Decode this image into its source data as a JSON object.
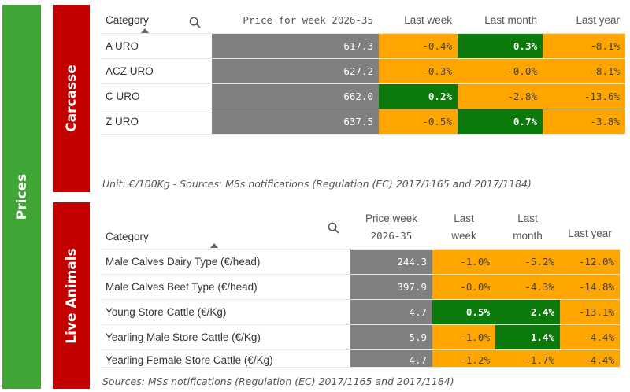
{
  "side": {
    "prices": "Prices",
    "carcasse": "Carcasse",
    "live": "Live Animals"
  },
  "carcasse": {
    "headers": {
      "category": "Category",
      "price": "Price for week 2026-35",
      "last_week": "Last week",
      "last_month": "Last month",
      "last_year": "Last year"
    },
    "rows": [
      {
        "category": "A URO",
        "price": "617.3",
        "last_week": "-0.4%",
        "last_month": "0.3%",
        "last_year": "-8.1%"
      },
      {
        "category": "ACZ URO",
        "price": "627.2",
        "last_week": "-0.3%",
        "last_month": "-0.0%",
        "last_year": "-8.1%"
      },
      {
        "category": "C URO",
        "price": "662.0",
        "last_week": "0.2%",
        "last_month": "-2.8%",
        "last_year": "-13.6%"
      },
      {
        "category": "Z URO",
        "price": "637.5",
        "last_week": "-0.5%",
        "last_month": "0.7%",
        "last_year": "-3.8%"
      }
    ],
    "note": "Unit: €/100Kg - Sources: MSs notifications (Regulation (EC) 2017/1165 and 2017/1184)"
  },
  "live": {
    "headers": {
      "category": "Category",
      "price_l1": "Price week",
      "price_l2": "2026-35",
      "last_week_l1": "Last",
      "last_week_l2": "week",
      "last_month_l1": "Last",
      "last_month_l2": "month",
      "last_year": "Last year"
    },
    "rows": [
      {
        "category": "Male Calves Dairy Type (€/head)",
        "price": "244.3",
        "last_week": "-1.0%",
        "last_month": "-5.2%",
        "last_year": "-12.0%"
      },
      {
        "category": "Male Calves Beef Type (€/head)",
        "price": "397.9",
        "last_week": "-0.0%",
        "last_month": "-4.3%",
        "last_year": "-14.8%"
      },
      {
        "category": "Young Store Cattle (€/Kg)",
        "price": "4.7",
        "last_week": "0.5%",
        "last_month": "2.4%",
        "last_year": "-13.1%"
      },
      {
        "category": "Yearling Male Store Cattle (€/Kg)",
        "price": "5.9",
        "last_week": "-1.0%",
        "last_month": "1.4%",
        "last_year": "-4.4%"
      },
      {
        "category": "Yearling Female Store Cattle (€/Kg)",
        "price": "4.7",
        "last_week": "-1.2%",
        "last_month": "-1.7%",
        "last_year": "-4.4%"
      }
    ],
    "note": "Sources: MSs notifications (Regulation (EC) 2017/1165 and 2017/1184)"
  },
  "colors": {
    "green_side": "#3fa535",
    "red_side": "#c40000",
    "price_cell": "#808080",
    "decline": "#ffa500",
    "increase": "#0b7a0b"
  }
}
